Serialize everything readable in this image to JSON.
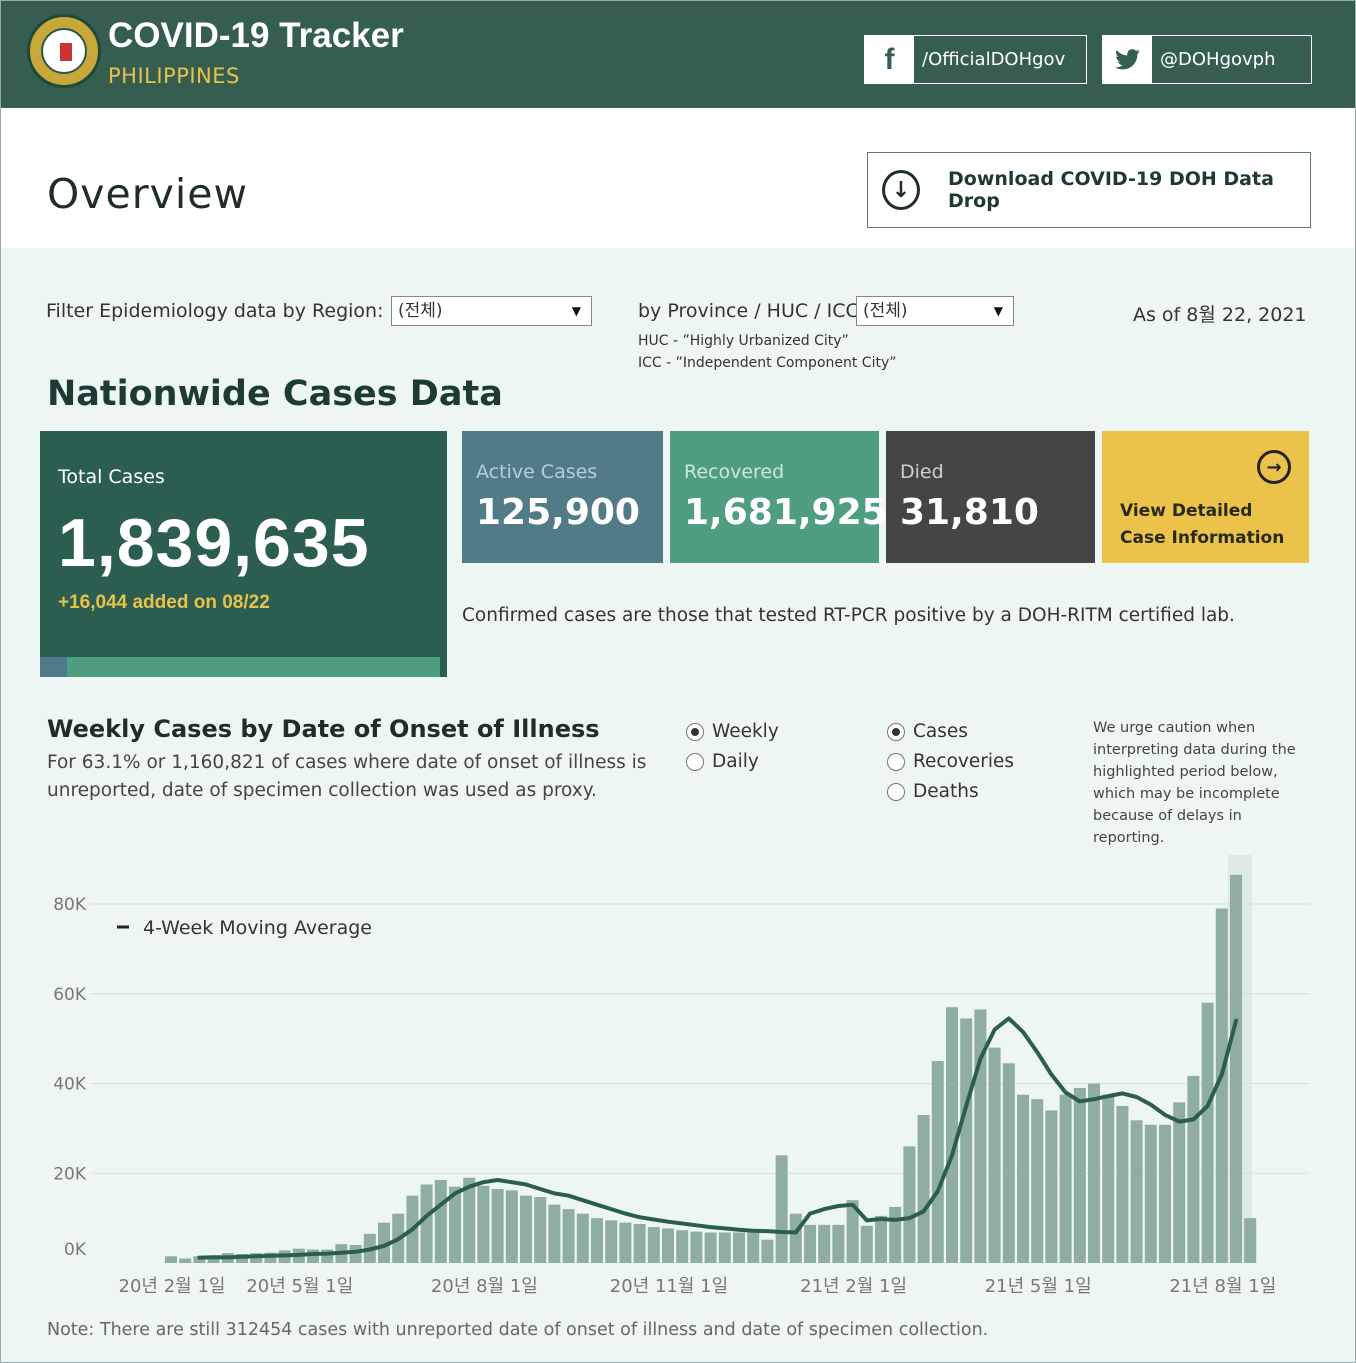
{
  "header": {
    "title": "COVID-19 Tracker",
    "subtitle": "PHILIPPINES",
    "facebook": "/OfficialDOHgov",
    "twitter": "@DOHgovph"
  },
  "overview": {
    "title": "Overview",
    "download_label": "Download COVID-19 DOH Data Drop"
  },
  "filters": {
    "region_label": "Filter Epidemiology data by Region:",
    "region_value": "(전체)",
    "province_label": "by Province / HUC / ICC:",
    "province_value": "(전체)",
    "huc_note": "HUC - ”Highly Urbanized City”",
    "icc_note": "ICC - ”Independent Component City”",
    "as_of": "As of 8월 22, 2021"
  },
  "nationwide": {
    "title": "Nationwide Cases Data",
    "total_label": "Total Cases",
    "total_value": "1,839,635",
    "added": "+16,044 added on 08/22",
    "active_share": 0.068,
    "active_label": "Active Cases",
    "active_value": "125,900",
    "recovered_label": "Recovered",
    "recovered_value": "1,681,925",
    "died_label": "Died",
    "died_value": "31,810",
    "detail_label": "View Detailed Case Information",
    "confirmed_note": "Confirmed cases are those that tested RT-PCR positive by a DOH-RITM certified lab."
  },
  "weekly": {
    "title": "Weekly Cases by Date of Onset of Illness",
    "description": "For 63.1% or 1,160,821 of cases where date of onset of illness is unreported, date of specimen collection was used as proxy.",
    "granularity": [
      {
        "label": "Weekly",
        "selected": true
      },
      {
        "label": "Daily",
        "selected": false
      }
    ],
    "measure": [
      {
        "label": "Cases",
        "selected": true
      },
      {
        "label": "Recoveries",
        "selected": false
      },
      {
        "label": "Deaths",
        "selected": false
      }
    ],
    "caution": "We urge caution when interpreting data during the highlighted period below, which may be incomplete because of delays in reporting.",
    "bottom_note": "Note: There are still 312454 cases with unreported date of onset of illness and date of specimen collection."
  },
  "chart_data": {
    "type": "bar",
    "legend": "4-Week Moving Average",
    "y_ticks": [
      "80K",
      "60K",
      "40K",
      "20K",
      "0K"
    ],
    "ylim": [
      0,
      80000
    ],
    "x_ticks": [
      {
        "label": "20년 2월 1일",
        "index": 0
      },
      {
        "label": "20년 5월 1일",
        "index": 9
      },
      {
        "label": "20년 8월 1일",
        "index": 22
      },
      {
        "label": "20년 11월 1일",
        "index": 35
      },
      {
        "label": "21년 2월 1일",
        "index": 48
      },
      {
        "label": "21년 5월 1일",
        "index": 61
      },
      {
        "label": "21년 8월 1일",
        "index": 74
      }
    ],
    "values": [
      1500,
      1000,
      1500,
      1500,
      2200,
      2000,
      2200,
      2300,
      2800,
      3200,
      3000,
      3000,
      4200,
      4000,
      6500,
      9000,
      11000,
      15000,
      17500,
      18500,
      17000,
      19000,
      17200,
      16500,
      16200,
      15000,
      14700,
      13000,
      12000,
      11000,
      10000,
      9500,
      9000,
      8700,
      8000,
      7700,
      7300,
      7000,
      6800,
      6800,
      6800,
      6800,
      5200,
      24000,
      11000,
      8500,
      8500,
      8500,
      14000,
      8300,
      10500,
      12500,
      26000,
      33000,
      45000,
      57000,
      54500,
      56500,
      48000,
      44500,
      37500,
      36500,
      34000,
      37500,
      39000,
      40000,
      37500,
      35000,
      31800,
      30800,
      30800,
      35800,
      41700,
      58000,
      79000,
      86500,
      10000
    ],
    "moving_average": [
      1200,
      1300,
      1250,
      1400,
      1500,
      1600,
      1700,
      1800,
      2000,
      2100,
      2300,
      2500,
      3000,
      3800,
      5300,
      7500,
      10500,
      13000,
      15500,
      17000,
      18000,
      18500,
      18000,
      17500,
      16500,
      15500,
      15000,
      14000,
      13000,
      12000,
      11000,
      10200,
      9700,
      9200,
      8800,
      8400,
      8000,
      7700,
      7400,
      7200,
      7100,
      6900,
      6800,
      11000,
      12000,
      12700,
      13000,
      9500,
      9800,
      9600,
      10000,
      11500,
      16000,
      24000,
      35000,
      45500,
      52000,
      54500,
      51500,
      47000,
      42000,
      38000,
      36000,
      36500,
      37200,
      37800,
      37000,
      35300,
      33000,
      31500,
      32000,
      35000,
      42000,
      54000
    ],
    "highlight_from_index": 75
  }
}
